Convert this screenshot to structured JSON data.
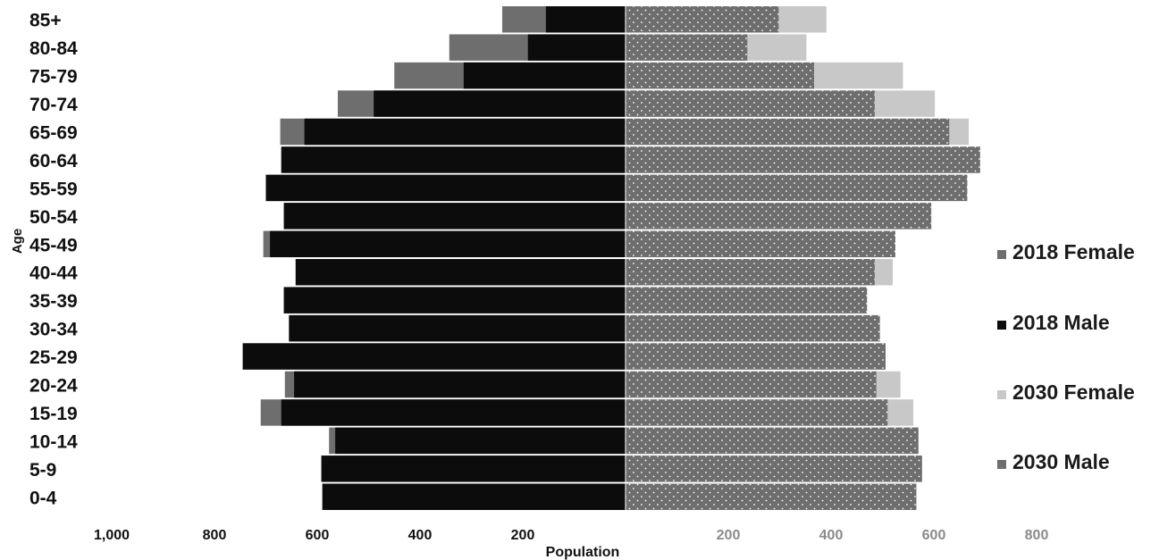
{
  "chart_data": {
    "type": "bar",
    "orientation": "horizontal",
    "layout": "population-pyramid",
    "xlabel": "Population",
    "ylabel": "Age",
    "categories": [
      "0-4",
      "5-9",
      "10-14",
      "15-19",
      "20-24",
      "25-29",
      "30-34",
      "35-39",
      "40-44",
      "45-49",
      "50-54",
      "55-59",
      "60-64",
      "65-69",
      "70-74",
      "75-79",
      "80-84",
      "85+"
    ],
    "x_ticks_left": [
      "1,000",
      "800",
      "600",
      "400",
      "200"
    ],
    "x_ticks_right": [
      "200",
      "400",
      "600",
      "800"
    ],
    "xlim": [
      -1000,
      800
    ],
    "grid": false,
    "legend_position": "right",
    "series": [
      {
        "name": "2018 Female",
        "side": "right",
        "color": "#6e6e6e",
        "pattern": "dots",
        "values": [
          566,
          577,
          570,
          510,
          488,
          506,
          495,
          470,
          485,
          525,
          595,
          665,
          690,
          630,
          485,
          367,
          237,
          298
        ]
      },
      {
        "name": "2018 Male",
        "side": "left",
        "color": "#0c0c0c",
        "values": [
          590,
          592,
          565,
          670,
          645,
          745,
          655,
          665,
          642,
          692,
          665,
          700,
          670,
          625,
          490,
          315,
          190,
          155
        ]
      },
      {
        "name": "2030 Female",
        "side": "right",
        "color": "#c8c8c8",
        "values": [
          566,
          577,
          570,
          560,
          535,
          506,
          495,
          470,
          520,
          525,
          595,
          665,
          690,
          668,
          602,
          540,
          352,
          391
        ]
      },
      {
        "name": "2030 Male",
        "side": "left",
        "color": "#6e6e6e",
        "values": [
          590,
          592,
          577,
          710,
          663,
          745,
          655,
          665,
          642,
          705,
          665,
          700,
          670,
          672,
          560,
          450,
          343,
          240
        ]
      }
    ],
    "legend": [
      {
        "name": "2018 Female",
        "color": "#6e6e6e"
      },
      {
        "name": "2018 Male",
        "color": "#0c0c0c"
      },
      {
        "name": "2030 Female",
        "color": "#c8c8c8"
      },
      {
        "name": "2030 Male",
        "color": "#6e6e6e"
      }
    ]
  }
}
